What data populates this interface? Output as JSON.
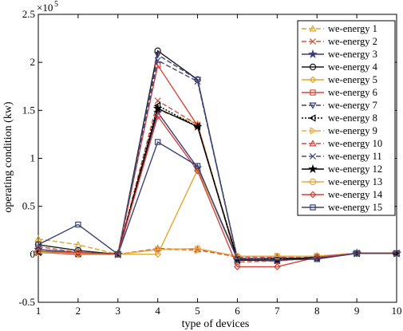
{
  "chart_data": {
    "type": "line",
    "xlabel": "type of devices",
    "ylabel": "operating condition (kw)",
    "exponent_label": "×10",
    "exponent_power": "5",
    "x": [
      1,
      2,
      3,
      4,
      5,
      6,
      7,
      8,
      9,
      10
    ],
    "xlim": [
      1,
      10
    ],
    "ylim": [
      -0.5,
      2.5
    ],
    "y_unit_scale": 100000,
    "xticks": [
      "1",
      "2",
      "3",
      "4",
      "5",
      "6",
      "7",
      "8",
      "9",
      "10"
    ],
    "yticks": [
      "-0.5",
      "0",
      "0.5",
      "1",
      "1.5",
      "2",
      "2.5"
    ],
    "grid": false,
    "legend_position": "top-right",
    "series": [
      {
        "name": "we-energy 1",
        "color": "#d7a636",
        "dash": "6,3",
        "marker": "triangle-up",
        "values": [
          0.16,
          0.1,
          0.0,
          1.5,
          1.36,
          -0.06,
          -0.03,
          -0.03,
          0.01,
          0.01
        ]
      },
      {
        "name": "we-energy 2",
        "color": "#c8553d",
        "dash": "6,3",
        "marker": "x",
        "values": [
          0.08,
          0.02,
          0.0,
          1.6,
          1.35,
          -0.08,
          -0.07,
          -0.03,
          0.01,
          0.01
        ]
      },
      {
        "name": "we-energy 3",
        "color": "#3a3a7a",
        "dash": "",
        "marker": "star",
        "values": [
          0.05,
          0.02,
          0.0,
          1.48,
          0.9,
          -0.05,
          -0.04,
          -0.04,
          0.01,
          0.01
        ]
      },
      {
        "name": "we-energy 4",
        "color": "#1a1a1a",
        "dash": "",
        "marker": "circle",
        "values": [
          0.1,
          0.04,
          0.0,
          2.12,
          1.82,
          -0.05,
          -0.06,
          -0.03,
          0.01,
          0.01
        ]
      },
      {
        "name": "we-energy 5",
        "color": "#e3a532",
        "dash": "",
        "marker": "diamond",
        "values": [
          0.02,
          0.0,
          0.0,
          0.0,
          0.88,
          -0.02,
          -0.02,
          -0.02,
          0.01,
          0.01
        ]
      },
      {
        "name": "we-energy 6",
        "color": "#d9473b",
        "dash": "",
        "marker": "square",
        "values": [
          0.02,
          0.0,
          0.0,
          1.97,
          1.34,
          -0.06,
          -0.07,
          -0.03,
          0.01,
          0.01
        ]
      },
      {
        "name": "we-energy 7",
        "color": "#3b3f78",
        "dash": "6,3",
        "marker": "triangle-down",
        "values": [
          0.03,
          0.02,
          0.0,
          2.08,
          1.82,
          -0.04,
          -0.05,
          -0.04,
          0.01,
          0.01
        ]
      },
      {
        "name": "we-energy 8",
        "color": "#000000",
        "dash": "2,2",
        "marker": "triangle-left",
        "values": [
          0.02,
          0.01,
          0.0,
          1.55,
          1.33,
          -0.05,
          -0.05,
          -0.04,
          0.01,
          0.01
        ]
      },
      {
        "name": "we-energy 9",
        "color": "#eda83a",
        "dash": "6,3",
        "marker": "triangle-right",
        "values": [
          0.02,
          0.01,
          0.0,
          0.05,
          0.04,
          -0.02,
          -0.02,
          -0.02,
          0.01,
          0.01
        ]
      },
      {
        "name": "we-energy 10",
        "color": "#c94a3c",
        "dash": "6,3",
        "marker": "triangle-up",
        "values": [
          0.02,
          0.01,
          0.0,
          0.06,
          0.05,
          -0.03,
          -0.03,
          -0.02,
          0.01,
          0.01
        ]
      },
      {
        "name": "we-energy 11",
        "color": "#414b7e",
        "dash": "6,3",
        "marker": "x",
        "values": [
          0.03,
          0.01,
          0.0,
          2.02,
          1.8,
          -0.05,
          -0.06,
          -0.03,
          0.01,
          0.01
        ]
      },
      {
        "name": "we-energy 12",
        "color": "#000000",
        "dash": "",
        "marker": "star",
        "values": [
          0.02,
          0.01,
          0.0,
          1.52,
          1.33,
          -0.06,
          -0.06,
          -0.03,
          0.01,
          0.01
        ]
      },
      {
        "name": "we-energy 13",
        "color": "#e6a93e",
        "dash": "",
        "marker": "circle",
        "values": [
          0.02,
          0.01,
          0.0,
          0.05,
          0.06,
          -0.02,
          -0.02,
          -0.02,
          0.01,
          0.01
        ]
      },
      {
        "name": "we-energy 14",
        "color": "#d1443a",
        "dash": "",
        "marker": "diamond",
        "values": [
          0.03,
          0.02,
          0.0,
          1.44,
          0.87,
          -0.13,
          -0.13,
          -0.03,
          0.01,
          0.01
        ]
      },
      {
        "name": "we-energy 15",
        "color": "#3a4174",
        "dash": "",
        "marker": "square",
        "values": [
          0.1,
          0.31,
          0.0,
          1.17,
          0.92,
          -0.05,
          -0.06,
          -0.05,
          0.01,
          0.01
        ]
      }
    ]
  }
}
